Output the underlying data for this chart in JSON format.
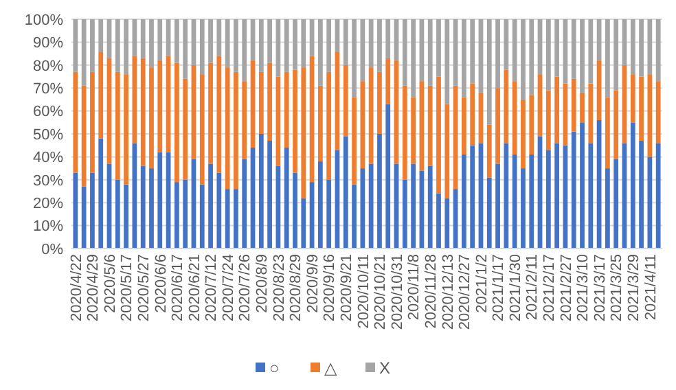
{
  "chart_data": {
    "type": "bar",
    "stacked": true,
    "categories": [
      "2020/4/22",
      null,
      "2020/4/29",
      null,
      "2020/5/6",
      null,
      "2020/5/17",
      null,
      "2020/5/27",
      null,
      "2020/6/6",
      null,
      "2020/6/17",
      null,
      "2020/6/21",
      null,
      "2020/7/12",
      null,
      "2020/7/24",
      null,
      "2020/7/26",
      null,
      "2020/8/9",
      null,
      "2020/8/23",
      null,
      "2020/8/29",
      null,
      "2020/9/9",
      null,
      "2020/9/16",
      null,
      "2020/9/21",
      null,
      "2020/10/11",
      null,
      "2020/10/21",
      null,
      "2020/10/31",
      null,
      "2020/11/8",
      null,
      "2020/11/28",
      null,
      "2020/12/13",
      null,
      "2020/12/27",
      null,
      "2021/1/2",
      null,
      "2021/1/17",
      null,
      "2021/1/30",
      null,
      "2021/2/11",
      null,
      "2021/2/17",
      null,
      "2021/2/27",
      null,
      "2021/3/10",
      null,
      "2021/3/17",
      null,
      "2021/3/25",
      null,
      "2021/3/29",
      null,
      "2021/4/11",
      null
    ],
    "series": [
      {
        "name": "○",
        "color": "#4472c4",
        "values": [
          33,
          27,
          33,
          48,
          37,
          30,
          28,
          46,
          36,
          35,
          42,
          42,
          29,
          30,
          39,
          28,
          37,
          33,
          26,
          26,
          39,
          44,
          50,
          47,
          36,
          44,
          33,
          22,
          29,
          38,
          30,
          43,
          49,
          28,
          35,
          37,
          50,
          63,
          37,
          30,
          37,
          34,
          36,
          24,
          22,
          26,
          41,
          45,
          46,
          31,
          37,
          46,
          41,
          35,
          41,
          49,
          43,
          46,
          45,
          51,
          55,
          46,
          56,
          35,
          39,
          46,
          55,
          47,
          40,
          46
        ]
      },
      {
        "name": "△",
        "color": "#ed7d31",
        "values": [
          44,
          44,
          44,
          38,
          46,
          47,
          48,
          38,
          47,
          44,
          40,
          42,
          52,
          44,
          41,
          48,
          44,
          51,
          53,
          51,
          34,
          38,
          27,
          34,
          39,
          33,
          45,
          57,
          55,
          33,
          47,
          43,
          31,
          38,
          38,
          42,
          27,
          20,
          45,
          41,
          29,
          39,
          35,
          51,
          41,
          45,
          25,
          27,
          22,
          23,
          33,
          32,
          32,
          30,
          26,
          27,
          26,
          29,
          27,
          23,
          13,
          26,
          26,
          31,
          30,
          34,
          21,
          28,
          36,
          27
        ]
      },
      {
        "name": "X",
        "color": "#a5a5a5",
        "values": [
          23,
          29,
          23,
          14,
          17,
          23,
          24,
          16,
          17,
          21,
          18,
          16,
          19,
          26,
          20,
          24,
          19,
          16,
          21,
          23,
          27,
          18,
          23,
          19,
          25,
          23,
          22,
          21,
          16,
          29,
          23,
          14,
          20,
          34,
          27,
          21,
          23,
          17,
          18,
          29,
          34,
          27,
          29,
          25,
          37,
          29,
          34,
          28,
          32,
          46,
          30,
          22,
          27,
          35,
          33,
          24,
          31,
          25,
          28,
          26,
          32,
          28,
          18,
          34,
          31,
          20,
          24,
          25,
          24,
          27
        ]
      }
    ],
    "ylim": [
      0,
      100
    ],
    "yticks": [
      {
        "value": 0,
        "label": "0%"
      },
      {
        "value": 10,
        "label": "10%"
      },
      {
        "value": 20,
        "label": "20%"
      },
      {
        "value": 30,
        "label": "30%"
      },
      {
        "value": 40,
        "label": "40%"
      },
      {
        "value": 50,
        "label": "50%"
      },
      {
        "value": 60,
        "label": "60%"
      },
      {
        "value": 70,
        "label": "70%"
      },
      {
        "value": 80,
        "label": "80%"
      },
      {
        "value": 90,
        "label": "90%"
      },
      {
        "value": 100,
        "label": "100%"
      }
    ],
    "grid": "y",
    "legend": "bottom"
  }
}
